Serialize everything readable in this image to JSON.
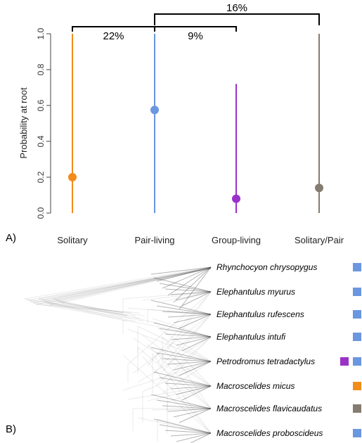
{
  "chart_data": {
    "type": "scatter",
    "panel_label": "A)",
    "ylabel": "Probability at root",
    "ylim": [
      0,
      1
    ],
    "yticks": [
      "0.0",
      "0.2",
      "0.4",
      "0.6",
      "0.8",
      "1.0"
    ],
    "categories": [
      "Solitary",
      "Pair-living",
      "Group-living",
      "Solitary/Pair"
    ],
    "values": [
      0.2,
      0.575,
      0.08,
      0.14
    ],
    "intervals": [
      [
        0,
        1.0
      ],
      [
        0,
        1.0
      ],
      [
        0,
        0.72
      ],
      [
        0,
        1.0
      ]
    ],
    "colors": [
      "#f28c1a",
      "#6b96e0",
      "#9a32c8",
      "#857c70"
    ],
    "comparisons": [
      {
        "label": "22%",
        "from": "Solitary",
        "to": "Pair-living"
      },
      {
        "label": "9%",
        "from": "Pair-living",
        "to": "Group-living"
      },
      {
        "label": "16%",
        "from": "Pair-living",
        "to": "Solitary/Pair"
      }
    ]
  },
  "tree": {
    "panel_label": "B)",
    "species": [
      {
        "name": "Rhynchocyon chrysopygus",
        "states": [
          "#6b96e0"
        ]
      },
      {
        "name": "Elephantulus myurus",
        "states": [
          "#6b96e0"
        ]
      },
      {
        "name": "Elephantulus rufescens",
        "states": [
          "#6b96e0"
        ]
      },
      {
        "name": "Elephantulus intufi",
        "states": [
          "#6b96e0"
        ]
      },
      {
        "name": "Petrodromus tetradactylus",
        "states": [
          "#9a32c8",
          "#6b96e0"
        ]
      },
      {
        "name": "Macroscelides micus",
        "states": [
          "#f28c1a"
        ]
      },
      {
        "name": "Macroscelides flavicaudatus",
        "states": [
          "#857c70"
        ]
      },
      {
        "name": "Macroscelides proboscideus",
        "states": [
          "#6b96e0"
        ]
      }
    ]
  }
}
